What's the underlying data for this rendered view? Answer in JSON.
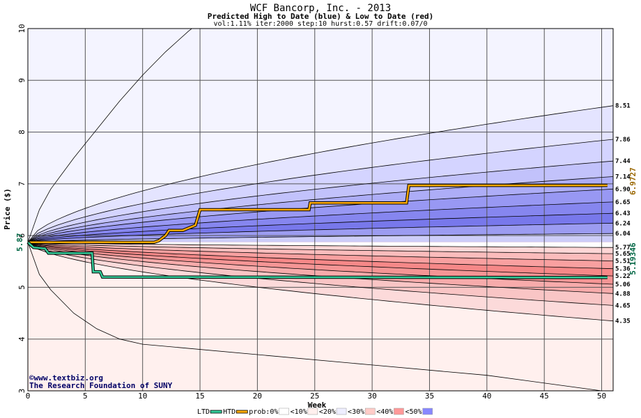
{
  "chart_data": {
    "type": "line",
    "title": "WCF Bancorp, Inc. - 2013",
    "subtitle": "Predicted High to Date (blue) &  Low to Date (red)",
    "params": "vol:1.11% iter:2000 step:10 hurst:0.57 drift:0.07/0",
    "xlabel": "Week",
    "ylabel": "Price ($)",
    "xlim": [
      0,
      51
    ],
    "ylim": [
      3,
      10
    ],
    "x_ticks": [
      0,
      5,
      10,
      15,
      20,
      25,
      30,
      35,
      40,
      45,
      50
    ],
    "y_ticks": [
      3,
      4,
      5,
      6,
      7,
      8,
      9,
      10
    ],
    "start_price": 5.87,
    "start_price_label": "5.87",
    "grid": true,
    "high_curves": [
      {
        "end": 8.51,
        "label": "8.51"
      },
      {
        "end": 7.86,
        "label": "7.86"
      },
      {
        "end": 7.44,
        "label": "7.44"
      },
      {
        "end": 7.14,
        "label": "7.14"
      },
      {
        "end": 6.9,
        "label": "6.90"
      },
      {
        "end": 6.65,
        "label": "6.65"
      },
      {
        "end": 6.43,
        "label": "6.43"
      },
      {
        "end": 6.24,
        "label": "6.24"
      },
      {
        "end": 6.04,
        "label": "6.04"
      }
    ],
    "low_curves": [
      {
        "end": 5.77,
        "label": "5.77"
      },
      {
        "end": 5.65,
        "label": "5.65"
      },
      {
        "end": 5.51,
        "label": "5.51"
      },
      {
        "end": 5.36,
        "label": "5.36"
      },
      {
        "end": 5.22,
        "label": "5.22"
      },
      {
        "end": 5.06,
        "label": "5.06"
      },
      {
        "end": 4.88,
        "label": "4.88"
      },
      {
        "end": 4.65,
        "label": "4.65"
      },
      {
        "end": 4.35,
        "label": "4.35"
      }
    ],
    "outer_high": {
      "points": [
        [
          0,
          5.87
        ],
        [
          1,
          6.5
        ],
        [
          2,
          6.9
        ],
        [
          4,
          7.5
        ],
        [
          6,
          8.05
        ],
        [
          8,
          8.6
        ],
        [
          10,
          9.1
        ],
        [
          12,
          9.55
        ],
        [
          14,
          9.95
        ],
        [
          16,
          10.3
        ],
        [
          20,
          11.0
        ]
      ]
    },
    "outer_low": {
      "points": [
        [
          0,
          5.87
        ],
        [
          1,
          5.25
        ],
        [
          2,
          4.95
        ],
        [
          4,
          4.5
        ],
        [
          6,
          4.2
        ],
        [
          8,
          4.0
        ],
        [
          10,
          3.9
        ],
        [
          20,
          3.7
        ],
        [
          30,
          3.5
        ],
        [
          40,
          3.3
        ],
        [
          50,
          3.0
        ]
      ]
    },
    "hist_high": {
      "name": "HTD",
      "color": "#ffaa00",
      "points": [
        [
          0,
          5.87
        ],
        [
          11,
          5.87
        ],
        [
          11.4,
          5.9
        ],
        [
          12,
          6.0
        ],
        [
          12.3,
          6.1
        ],
        [
          13.5,
          6.1
        ],
        [
          14.6,
          6.2
        ],
        [
          15,
          6.5
        ],
        [
          24.5,
          6.5
        ],
        [
          24.6,
          6.63
        ],
        [
          33,
          6.63
        ],
        [
          33.2,
          6.97
        ],
        [
          50.5,
          6.97
        ]
      ],
      "final_label": "6.9727"
    },
    "hist_low": {
      "name": "LTD",
      "color": "#33cc99",
      "points": [
        [
          0,
          5.87
        ],
        [
          0.5,
          5.77
        ],
        [
          1.5,
          5.75
        ],
        [
          1.8,
          5.66
        ],
        [
          5.6,
          5.66
        ],
        [
          5.7,
          5.3
        ],
        [
          6.3,
          5.3
        ],
        [
          6.5,
          5.2
        ],
        [
          50.5,
          5.19
        ]
      ],
      "final_label": "5.19346"
    },
    "legend": {
      "items": [
        {
          "label": "LTD",
          "color": "#33cc99",
          "kind": "line"
        },
        {
          "label": "HTD",
          "color": "#ffaa00",
          "kind": "line"
        },
        {
          "label": "prob:0%",
          "color": "#ffffff",
          "kind": "swatch"
        },
        {
          "label": "<10%",
          "color": "#fff0ee",
          "kind": "swatch"
        },
        {
          "label": "<20%",
          "color": "#eeeeff",
          "kind": "swatch"
        },
        {
          "label": "<30%",
          "color": "#ffccc8",
          "kind": "swatch"
        },
        {
          "label": "<40%",
          "color": "#ff9999",
          "kind": "swatch"
        },
        {
          "label": "<50%",
          "color": "#8888ff",
          "kind": "swatch"
        }
      ],
      "placement": "bottom"
    },
    "colors": {
      "high_zone_bg": "#f4f4ff",
      "low_zone_bg": "#fff0ee",
      "high_bands": [
        "#f4f4ff",
        "#e4e4ff",
        "#d4d4ff",
        "#c2c2fb",
        "#adadf7",
        "#9898f3",
        "#8686ef",
        "#7878eb",
        "#9c9cf1",
        "#cdcdf8"
      ],
      "low_bands": [
        "#ffffff",
        "#fdd6d6",
        "#fbbcbc",
        "#f9a0a0",
        "#f68888",
        "#f59595",
        "#f7abab",
        "#f9c5c5",
        "#fcdada",
        "#fff0ee"
      ],
      "high_end_label": "#996600",
      "low_end_label": "#006644",
      "start_label": "#006644"
    }
  },
  "credit": {
    "copyright_symbol": "©",
    "site": "www.textbiz.org",
    "org": "The Research Foundation of SUNY"
  }
}
